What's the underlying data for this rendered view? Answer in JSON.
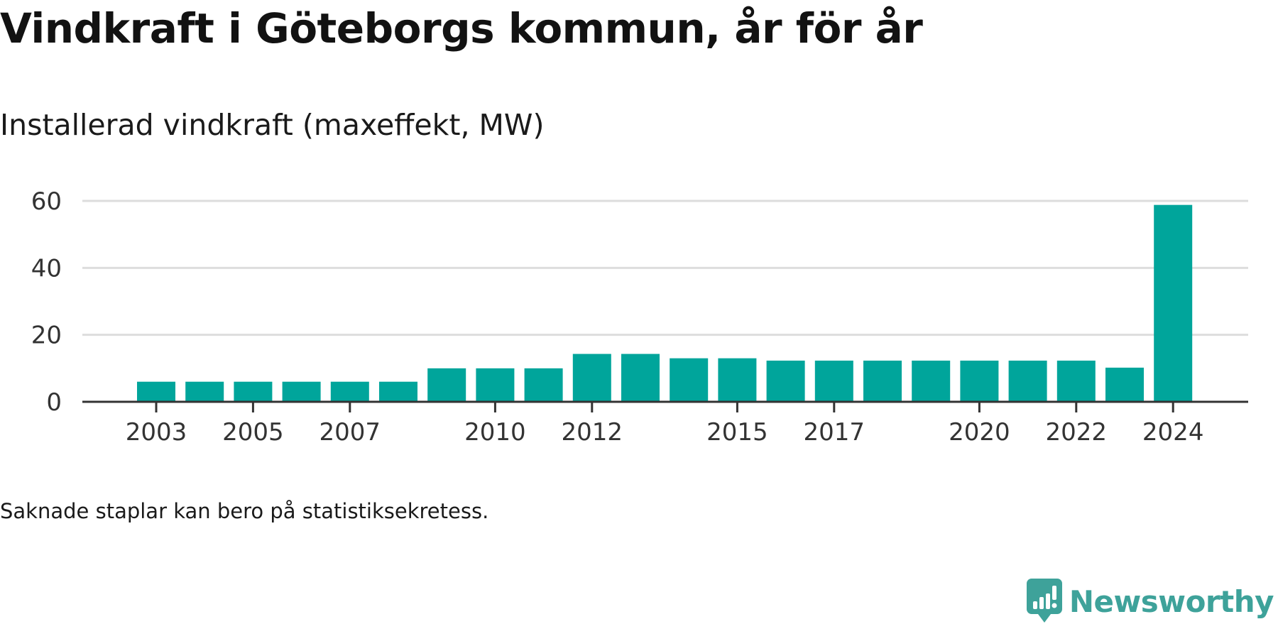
{
  "title": "Vindkraft i Göteborgs kommun, år för år",
  "subtitle": "Installerad vindkraft (maxeffekt, MW)",
  "note": "Saknade staplar kan bero på statistiksekretess.",
  "brand": {
    "name": "Newsworthy",
    "icon": "newsworthy-chart-bubble-icon",
    "color": "#3ea29a"
  },
  "chart_data": {
    "type": "bar",
    "categories": [
      "2003",
      "2004",
      "2005",
      "2006",
      "2007",
      "2008",
      "2009",
      "2010",
      "2011",
      "2012",
      "2013",
      "2014",
      "2015",
      "2016",
      "2017",
      "2018",
      "2019",
      "2020",
      "2021",
      "2022",
      "2023",
      "2024"
    ],
    "values": [
      6,
      6,
      6,
      6,
      6,
      6,
      10,
      10,
      10,
      14.3,
      14.3,
      13,
      13,
      12.3,
      12.3,
      12.3,
      12.3,
      12.3,
      12.3,
      12.3,
      10.2,
      58.8
    ],
    "x_tick_labels": [
      "2003",
      "2005",
      "2007",
      "2010",
      "2012",
      "2015",
      "2017",
      "2020",
      "2022",
      "2024"
    ],
    "y_ticks": [
      0,
      20,
      40,
      60
    ],
    "ylim": [
      0,
      60
    ],
    "grid": true,
    "legend": "none",
    "xlabel": "",
    "ylabel": "",
    "bar_color": "#00a59b",
    "grid_color": "#dddddd",
    "axis_color": "#333333"
  }
}
